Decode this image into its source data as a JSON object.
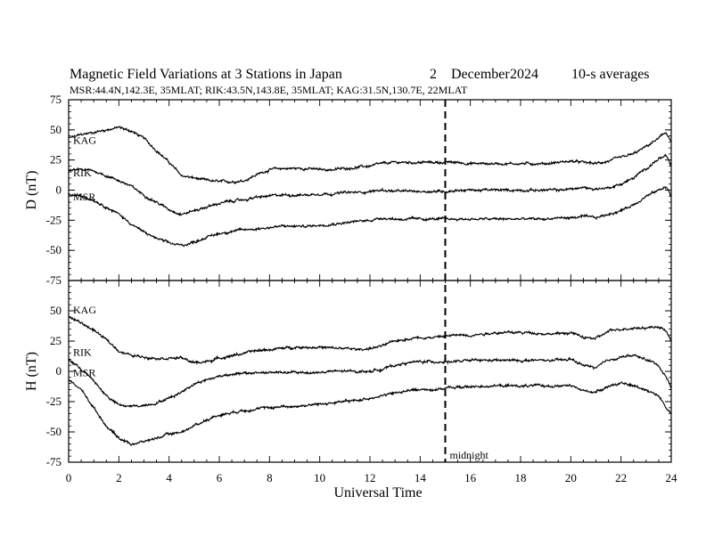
{
  "chart_data": {
    "type": "line",
    "title": "Magnetic Field Variations at 3 Stations in Japan",
    "date_day": "2",
    "date_month": "December",
    "date_year": "2024",
    "averaging": "10-s averages",
    "stations_line": "MSR:44.4N,142.3E, 35MLAT;  RIK:43.5N,143.8E, 35MLAT;  KAG:31.5N,130.7E, 22MLAT",
    "xlabel": "Universal Time",
    "xlim": [
      0,
      24
    ],
    "x_ticks": [
      "0",
      "2",
      "4",
      "6",
      "8",
      "10",
      "12",
      "14",
      "16",
      "18",
      "20",
      "22",
      "24"
    ],
    "midnight_label": "midnight",
    "midnight_ut": 15,
    "panels": [
      {
        "component": "D",
        "ylabel": "D (nT)",
        "ylim": [
          -75,
          75
        ],
        "y_ticks": [
          "75",
          "50",
          "25",
          "0",
          "-25",
          "-50",
          "-75"
        ],
        "series": [
          {
            "name": "KAG",
            "x": [
              0,
              0.5,
              1,
              1.5,
              2,
              2.5,
              3,
              3.5,
              4,
              4.5,
              5,
              5.5,
              6,
              6.5,
              7,
              7.5,
              8,
              8.5,
              9,
              9.5,
              10,
              10.5,
              11,
              11.5,
              12,
              12.5,
              13,
              13.5,
              14,
              14.5,
              15,
              15.5,
              16,
              16.5,
              17,
              17.5,
              18,
              18.5,
              19,
              19.5,
              20,
              20.5,
              21,
              21.5,
              22,
              22.5,
              23,
              23.5,
              23.8,
              24
            ],
            "values": [
              43,
              46,
              48,
              50,
              52,
              49,
              43,
              33,
              23,
              12,
              10,
              8,
              7,
              7,
              8,
              13,
              17,
              18,
              18,
              18,
              17,
              17,
              18,
              19,
              20,
              22,
              23,
              23,
              23,
              23,
              23,
              23,
              22,
              22,
              22,
              22,
              22,
              22,
              22,
              23,
              24,
              23,
              22,
              24,
              27,
              30,
              36,
              43,
              48,
              40
            ]
          },
          {
            "name": "RIK",
            "x": [
              0,
              0.5,
              1,
              1.5,
              2,
              2.5,
              3,
              3.5,
              4,
              4.5,
              5,
              5.5,
              6,
              6.5,
              7,
              7.5,
              8,
              8.5,
              9,
              9.5,
              10,
              10.5,
              11,
              11.5,
              12,
              12.5,
              13,
              13.5,
              14,
              14.5,
              15,
              15.5,
              16,
              16.5,
              17,
              17.5,
              18,
              18.5,
              19,
              19.5,
              20,
              20.5,
              21,
              21.5,
              22,
              22.5,
              23,
              23.5,
              23.8,
              24
            ],
            "values": [
              16,
              17,
              16,
              12,
              8,
              3,
              -4,
              -10,
              -16,
              -20,
              -17,
              -14,
              -11,
              -9,
              -8,
              -6,
              -5,
              -4,
              -4,
              -4,
              -3,
              -3,
              -2,
              -2,
              -1,
              0,
              -1,
              -1,
              -1,
              -1,
              -1,
              0,
              0,
              0,
              0,
              0,
              0,
              0,
              0,
              0,
              1,
              2,
              1,
              2,
              5,
              10,
              18,
              26,
              28,
              20
            ]
          },
          {
            "name": "MSR",
            "x": [
              0,
              0.5,
              1,
              1.5,
              2,
              2.5,
              3,
              3.5,
              4,
              4.5,
              5,
              5.5,
              6,
              6.5,
              7,
              7.5,
              8,
              8.5,
              9,
              9.5,
              10,
              10.5,
              11,
              11.5,
              12,
              12.5,
              13,
              13.5,
              14,
              14.5,
              15,
              15.5,
              16,
              16.5,
              17,
              17.5,
              18,
              18.5,
              19,
              19.5,
              20,
              20.5,
              21,
              21.5,
              22,
              22.5,
              23,
              23.5,
              23.8,
              24
            ],
            "values": [
              -4,
              -5,
              -8,
              -14,
              -20,
              -28,
              -35,
              -40,
              -44,
              -46,
              -43,
              -39,
              -36,
              -34,
              -33,
              -32,
              -31,
              -30,
              -30,
              -30,
              -29,
              -28,
              -27,
              -26,
              -25,
              -23,
              -24,
              -24,
              -24,
              -24,
              -24,
              -24,
              -24,
              -24,
              -24,
              -24,
              -24,
              -24,
              -24,
              -23,
              -23,
              -22,
              -23,
              -20,
              -17,
              -12,
              -5,
              0,
              3,
              -5
            ]
          }
        ]
      },
      {
        "component": "H",
        "ylabel": "H (nT)",
        "ylim": [
          -75,
          75
        ],
        "y_ticks": [
          "",
          "50",
          "25",
          "0",
          "-25",
          "-50",
          "-75"
        ],
        "series": [
          {
            "name": "KAG",
            "x": [
              0,
              0.5,
              1,
              1.5,
              2,
              2.5,
              3,
              3.5,
              4,
              4.5,
              5,
              5.5,
              6,
              6.5,
              7,
              7.5,
              8,
              8.5,
              9,
              9.5,
              10,
              10.5,
              11,
              11.5,
              12,
              12.5,
              13,
              13.5,
              14,
              14.5,
              15,
              15.5,
              16,
              16.5,
              17,
              17.5,
              18,
              18.5,
              19,
              19.5,
              20,
              20.5,
              21,
              21.5,
              22,
              22.5,
              23,
              23.5,
              23.8,
              24
            ],
            "values": [
              45,
              40,
              34,
              26,
              17,
              13,
              12,
              11,
              11,
              11,
              7,
              8,
              11,
              13,
              15,
              17,
              18,
              19,
              20,
              20,
              20,
              19,
              19,
              18,
              19,
              21,
              25,
              27,
              28,
              28,
              29,
              30,
              30,
              31,
              32,
              32,
              32,
              32,
              31,
              31,
              32,
              28,
              27,
              33,
              35,
              36,
              36,
              37,
              33,
              25
            ]
          },
          {
            "name": "RIK",
            "x": [
              0,
              0.5,
              1,
              1.5,
              2,
              2.5,
              3,
              3.5,
              4,
              4.5,
              5,
              5.5,
              6,
              6.5,
              7,
              7.5,
              8,
              8.5,
              9,
              9.5,
              10,
              10.5,
              11,
              11.5,
              12,
              12.5,
              13,
              13.5,
              14,
              14.5,
              15,
              15.5,
              16,
              16.5,
              17,
              17.5,
              18,
              18.5,
              19,
              19.5,
              20,
              20.5,
              21,
              21.5,
              22,
              22.5,
              23,
              23.5,
              23.8,
              24
            ],
            "values": [
              10,
              2,
              -8,
              -20,
              -28,
              -29,
              -28,
              -26,
              -22,
              -17,
              -10,
              -7,
              -4,
              -2,
              -2,
              -1,
              -1,
              -1,
              -1,
              -1,
              -1,
              0,
              0,
              0,
              0,
              2,
              5,
              7,
              8,
              8,
              8,
              8,
              9,
              9,
              9,
              9,
              9,
              9,
              9,
              9,
              10,
              5,
              3,
              9,
              12,
              13,
              10,
              5,
              -5,
              -13
            ]
          },
          {
            "name": "MSR",
            "x": [
              0,
              0.5,
              1,
              1.5,
              2,
              2.5,
              3,
              3.5,
              4,
              4.5,
              5,
              5.5,
              6,
              6.5,
              7,
              7.5,
              8,
              8.5,
              9,
              9.5,
              10,
              10.5,
              11,
              11.5,
              12,
              12.5,
              13,
              13.5,
              14,
              14.5,
              15,
              15.5,
              16,
              16.5,
              17,
              17.5,
              18,
              18.5,
              19,
              19.5,
              20,
              20.5,
              21,
              21.5,
              22,
              22.5,
              23,
              23.5,
              23.8,
              24
            ],
            "values": [
              -7,
              -15,
              -30,
              -45,
              -55,
              -60,
              -58,
              -55,
              -52,
              -50,
              -45,
              -40,
              -36,
              -34,
              -32,
              -31,
              -30,
              -29,
              -29,
              -28,
              -27,
              -26,
              -25,
              -24,
              -22,
              -20,
              -18,
              -16,
              -15,
              -15,
              -14,
              -13,
              -13,
              -12,
              -12,
              -12,
              -12,
              -12,
              -12,
              -12,
              -12,
              -16,
              -17,
              -12,
              -10,
              -12,
              -15,
              -20,
              -30,
              -35
            ]
          }
        ]
      }
    ]
  }
}
